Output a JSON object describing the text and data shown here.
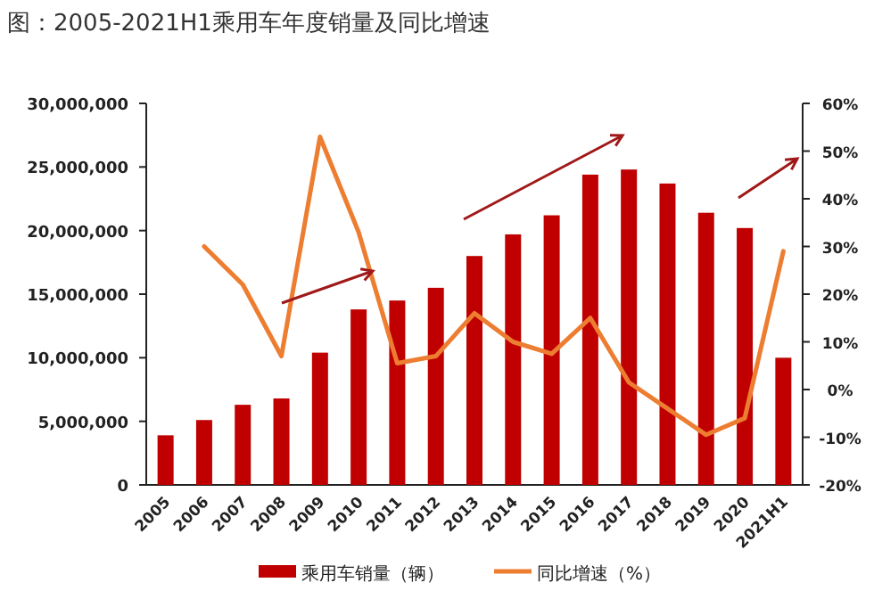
{
  "chart_data": {
    "type": "bar",
    "title": "图：2005-2021H1乘用车年度销量及同比增速",
    "categories": [
      "2005",
      "2006",
      "2007",
      "2008",
      "2009",
      "2010",
      "2011",
      "2012",
      "2013",
      "2014",
      "2015",
      "2016",
      "2017",
      "2018",
      "2019",
      "2020",
      "2021H1"
    ],
    "series": [
      {
        "name": "乘用车销量（辆）",
        "color": "#c00000",
        "values": [
          3900000,
          5100000,
          6300000,
          6800000,
          10400000,
          13800000,
          14500000,
          15500000,
          18000000,
          19700000,
          21200000,
          24400000,
          24800000,
          23700000,
          21400000,
          20200000,
          10000000
        ]
      },
      {
        "name": "同比增速（%）",
        "type": "line",
        "axis": "y2",
        "color": "#ed7d31",
        "values": [
          null,
          30,
          22,
          7,
          53,
          33,
          5.5,
          7,
          16,
          10,
          7.5,
          15,
          1.5,
          -4,
          -9.5,
          -6,
          29
        ]
      }
    ],
    "ylim": [
      0,
      30000000
    ],
    "yticks": [
      {
        "value": 0,
        "label": "0"
      },
      {
        "value": 5000000,
        "label": "5,000,000"
      },
      {
        "value": 10000000,
        "label": "10,000,000"
      },
      {
        "value": 15000000,
        "label": "15,000,000"
      },
      {
        "value": 20000000,
        "label": "20,000,000"
      },
      {
        "value": 25000000,
        "label": "25,000,000"
      },
      {
        "value": 30000000,
        "label": "30,000,000"
      }
    ],
    "y2lim": [
      -20,
      60
    ],
    "y2ticks": [
      {
        "value": -20,
        "label": "-20%"
      },
      {
        "value": -10,
        "label": "-10%"
      },
      {
        "value": 0,
        "label": "0%"
      },
      {
        "value": 10,
        "label": "10%"
      },
      {
        "value": 20,
        "label": "20%"
      },
      {
        "value": 30,
        "label": "30%"
      },
      {
        "value": 40,
        "label": "40%"
      },
      {
        "value": 50,
        "label": "50%"
      },
      {
        "value": 60,
        "label": "60%"
      }
    ],
    "legend": "bottom"
  }
}
